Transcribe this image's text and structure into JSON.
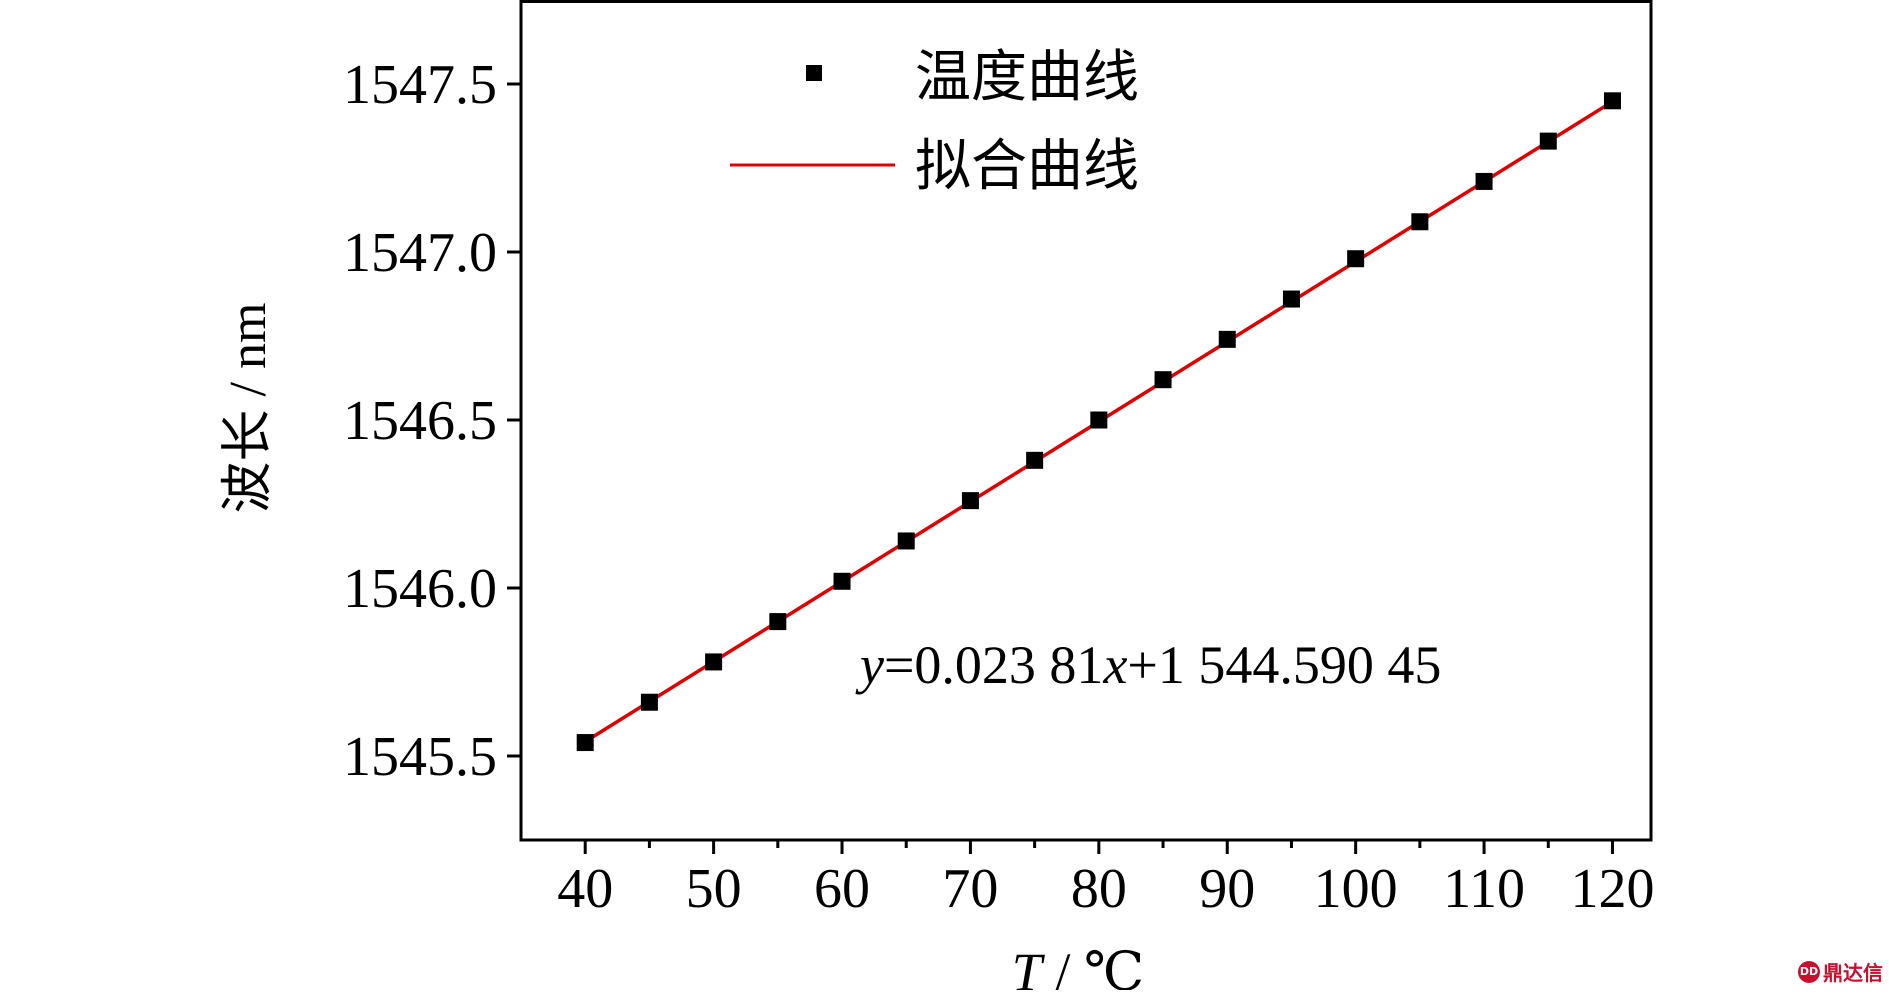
{
  "chart_data": {
    "type": "scatter",
    "xlabel_italic": "T",
    "xlabel_rest": " / ℃",
    "ylabel": "波长 / nm",
    "xlim": [
      35,
      123
    ],
    "ylim": [
      1545.25,
      1547.75
    ],
    "xticks": [
      40,
      50,
      60,
      70,
      80,
      90,
      100,
      110,
      120
    ],
    "yticks": [
      1545.5,
      1546.0,
      1546.5,
      1547.0,
      1547.5
    ],
    "ytick_labels": [
      "1545.5",
      "1546.0",
      "1546.5",
      "1547.0",
      "1547.5"
    ],
    "minor_xticks": [
      45,
      55,
      65,
      75,
      85,
      95,
      105,
      115
    ],
    "grid": false,
    "legend_position": "top-center",
    "series": [
      {
        "name": "温度曲线",
        "kind": "marker",
        "marker": "square",
        "color": "#000000",
        "x": [
          40,
          45,
          50,
          55,
          60,
          65,
          70,
          75,
          80,
          85,
          90,
          95,
          100,
          105,
          110,
          115,
          120
        ],
        "y": [
          1545.54,
          1545.66,
          1545.78,
          1545.9,
          1546.02,
          1546.14,
          1546.26,
          1546.38,
          1546.5,
          1546.62,
          1546.74,
          1546.86,
          1546.98,
          1547.09,
          1547.21,
          1547.33,
          1547.45
        ]
      },
      {
        "name": "拟合曲线",
        "kind": "line",
        "color": "#e00000",
        "x": [
          40,
          120
        ],
        "y": [
          1545.5429,
          1547.4477
        ]
      }
    ],
    "annotation": {
      "y_var": "y",
      "mid": "=0.023 81",
      "x_var": "x",
      "tail": "+1 544.590 45"
    }
  },
  "watermark": {
    "logo_text": "DD",
    "text": "鼎达信"
  }
}
